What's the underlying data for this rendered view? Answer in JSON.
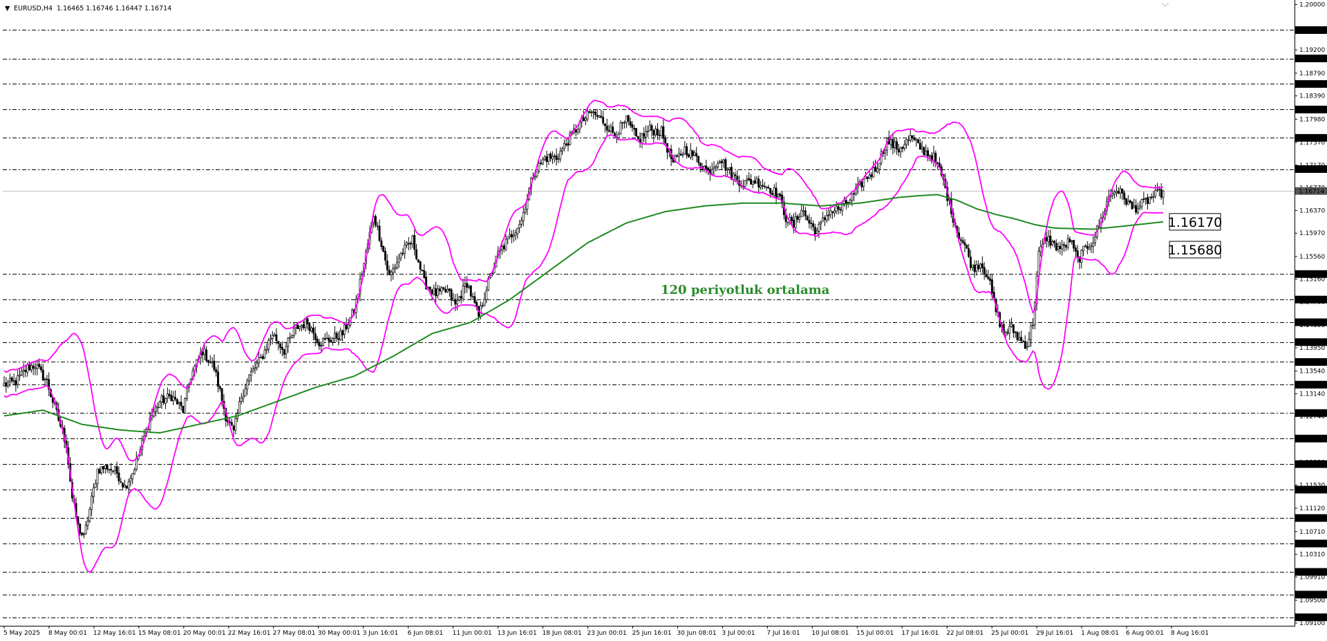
{
  "chart_header": {
    "arrow": "▼",
    "symbol": "EURUSD,H4",
    "ohlc": "1.16465 1.16746 1.16447 1.16714"
  },
  "colors": {
    "background": "#ffffff",
    "candle": "#000000",
    "bollinger": "#ff00ff",
    "moving_average": "#1e8a1e",
    "annotation": "#2b8a2b",
    "grid": "#000000"
  },
  "chart_data": {
    "type": "candlestick",
    "symbol": "EURUSD",
    "timeframe": "H4",
    "ylim": [
      1.0905,
      1.2008
    ],
    "y_tick_labels": [
      1.2,
      1.192,
      1.1879,
      1.1839,
      1.1798,
      1.1757,
      1.1717,
      1.1677,
      1.1637,
      1.1597,
      1.1556,
      1.1516,
      1.1476,
      1.1435,
      1.1395,
      1.1354,
      1.1314,
      1.1274,
      1.1233,
      1.1193,
      1.1153,
      1.1112,
      1.1071,
      1.1031,
      1.0991,
      1.095,
      1.091
    ],
    "x_labels": [
      "5 May 2025",
      "8 May 00:01",
      "12 May 16:01",
      "15 May 08:01",
      "20 May 00:01",
      "22 May 16:01",
      "27 May 08:01",
      "30 May 00:01",
      "3 Jun 16:01",
      "6 Jun 08:01",
      "11 Jun 00:01",
      "13 Jun 16:01",
      "18 Jun 08:01",
      "23 Jun 00:01",
      "25 Jun 16:01",
      "30 Jun 08:01",
      "3 Jul 00:01",
      "7 Jul 16:01",
      "10 Jul 08:01",
      "15 Jul 00:01",
      "17 Jul 16:01",
      "22 Jul 08:01",
      "25 Jul 00:01",
      "29 Jul 16:01",
      "1 Aug 08:01",
      "6 Aug 00:01",
      "8 Aug 16:01"
    ],
    "level_lines": [
      1.1955,
      1.1905,
      1.186,
      1.1815,
      1.1765,
      1.171,
      1.1525,
      1.148,
      1.144,
      1.1405,
      1.137,
      1.133,
      1.128,
      1.1235,
      1.119,
      1.1145,
      1.1095,
      1.105,
      1.1,
      1.096,
      1.092
    ],
    "current_price": 1.16714,
    "callouts": [
      {
        "label": "1.16170",
        "value": 1.1617
      },
      {
        "label": "1.15680",
        "value": 1.1568
      }
    ],
    "annotation": "120 periyotluk ortalama",
    "close_anchors": [
      [
        0,
        1.133
      ],
      [
        6,
        1.1335
      ],
      [
        12,
        1.136
      ],
      [
        16,
        1.1365
      ],
      [
        22,
        1.1335
      ],
      [
        26,
        1.129
      ],
      [
        32,
        1.1225
      ],
      [
        35,
        1.113
      ],
      [
        38,
        1.108
      ],
      [
        41,
        1.106
      ],
      [
        44,
        1.111
      ],
      [
        48,
        1.118
      ],
      [
        53,
        1.1185
      ],
      [
        58,
        1.1175
      ],
      [
        62,
        1.115
      ],
      [
        66,
        1.1175
      ],
      [
        70,
        1.1215
      ],
      [
        75,
        1.127
      ],
      [
        80,
        1.13
      ],
      [
        86,
        1.131
      ],
      [
        92,
        1.1285
      ],
      [
        96,
        1.1345
      ],
      [
        102,
        1.139
      ],
      [
        108,
        1.136
      ],
      [
        114,
        1.1275
      ],
      [
        118,
        1.1245
      ],
      [
        122,
        1.131
      ],
      [
        126,
        1.1345
      ],
      [
        132,
        1.1375
      ],
      [
        138,
        1.142
      ],
      [
        144,
        1.139
      ],
      [
        150,
        1.143
      ],
      [
        156,
        1.144
      ],
      [
        162,
        1.1405
      ],
      [
        168,
        1.141
      ],
      [
        174,
        1.142
      ],
      [
        180,
        1.146
      ],
      [
        186,
        1.156
      ],
      [
        190,
        1.163
      ],
      [
        194,
        1.158
      ],
      [
        198,
        1.152
      ],
      [
        204,
        1.156
      ],
      [
        210,
        1.1585
      ],
      [
        216,
        1.151
      ],
      [
        222,
        1.149
      ],
      [
        228,
        1.1495
      ],
      [
        232,
        1.147
      ],
      [
        238,
        1.151
      ],
      [
        244,
        1.145
      ],
      [
        248,
        1.15
      ],
      [
        254,
        1.156
      ],
      [
        260,
        1.159
      ],
      [
        266,
        1.162
      ],
      [
        272,
        1.17
      ],
      [
        278,
        1.173
      ],
      [
        284,
        1.173
      ],
      [
        290,
        1.176
      ],
      [
        296,
        1.179
      ],
      [
        302,
        1.181
      ],
      [
        308,
        1.1795
      ],
      [
        314,
        1.177
      ],
      [
        320,
        1.1795
      ],
      [
        326,
        1.176
      ],
      [
        332,
        1.178
      ],
      [
        338,
        1.1775
      ],
      [
        344,
        1.172
      ],
      [
        350,
        1.1745
      ],
      [
        356,
        1.173
      ],
      [
        362,
        1.1705
      ],
      [
        368,
        1.173
      ],
      [
        374,
        1.17
      ],
      [
        380,
        1.1685
      ],
      [
        386,
        1.169
      ],
      [
        392,
        1.168
      ],
      [
        398,
        1.1665
      ],
      [
        402,
        1.1625
      ],
      [
        406,
        1.161
      ],
      [
        410,
        1.164
      ],
      [
        414,
        1.1615
      ],
      [
        418,
        1.16
      ],
      [
        424,
        1.1635
      ],
      [
        430,
        1.164
      ],
      [
        436,
        1.166
      ],
      [
        442,
        1.169
      ],
      [
        448,
        1.171
      ],
      [
        454,
        1.176
      ],
      [
        460,
        1.1745
      ],
      [
        466,
        1.1765
      ],
      [
        472,
        1.1745
      ],
      [
        478,
        1.173
      ],
      [
        482,
        1.17
      ],
      [
        486,
        1.165
      ],
      [
        490,
        1.16
      ],
      [
        494,
        1.1575
      ],
      [
        498,
        1.1535
      ],
      [
        502,
        1.1545
      ],
      [
        506,
        1.152
      ],
      [
        510,
        1.146
      ],
      [
        514,
        1.142
      ],
      [
        518,
        1.143
      ],
      [
        522,
        1.141
      ],
      [
        526,
        1.14
      ],
      [
        529,
        1.144
      ],
      [
        532,
        1.156
      ],
      [
        536,
        1.159
      ],
      [
        540,
        1.1575
      ],
      [
        544,
        1.157
      ],
      [
        548,
        1.1585
      ],
      [
        552,
        1.155
      ],
      [
        556,
        1.157
      ],
      [
        560,
        1.1585
      ],
      [
        564,
        1.162
      ],
      [
        568,
        1.166
      ],
      [
        572,
        1.1675
      ],
      [
        576,
        1.166
      ],
      [
        580,
        1.164
      ],
      [
        584,
        1.1645
      ],
      [
        590,
        1.166
      ],
      [
        596,
        1.1671
      ]
    ],
    "ma_anchors": [
      [
        0,
        1.1275
      ],
      [
        20,
        1.1285
      ],
      [
        40,
        1.126
      ],
      [
        60,
        1.125
      ],
      [
        80,
        1.1245
      ],
      [
        100,
        1.126
      ],
      [
        120,
        1.1275
      ],
      [
        140,
        1.13
      ],
      [
        160,
        1.1325
      ],
      [
        180,
        1.1345
      ],
      [
        200,
        1.138
      ],
      [
        220,
        1.142
      ],
      [
        240,
        1.144
      ],
      [
        260,
        1.148
      ],
      [
        280,
        1.153
      ],
      [
        300,
        1.158
      ],
      [
        320,
        1.1615
      ],
      [
        340,
        1.1635
      ],
      [
        360,
        1.1645
      ],
      [
        380,
        1.165
      ],
      [
        400,
        1.165
      ],
      [
        420,
        1.1645
      ],
      [
        440,
        1.165
      ],
      [
        460,
        1.166
      ],
      [
        470,
        1.1663
      ],
      [
        480,
        1.1665
      ],
      [
        490,
        1.1655
      ],
      [
        500,
        1.164
      ],
      [
        510,
        1.163
      ],
      [
        520,
        1.1622
      ],
      [
        530,
        1.1612
      ],
      [
        540,
        1.1606
      ],
      [
        560,
        1.1604
      ],
      [
        580,
        1.1611
      ],
      [
        596,
        1.1617
      ]
    ]
  }
}
